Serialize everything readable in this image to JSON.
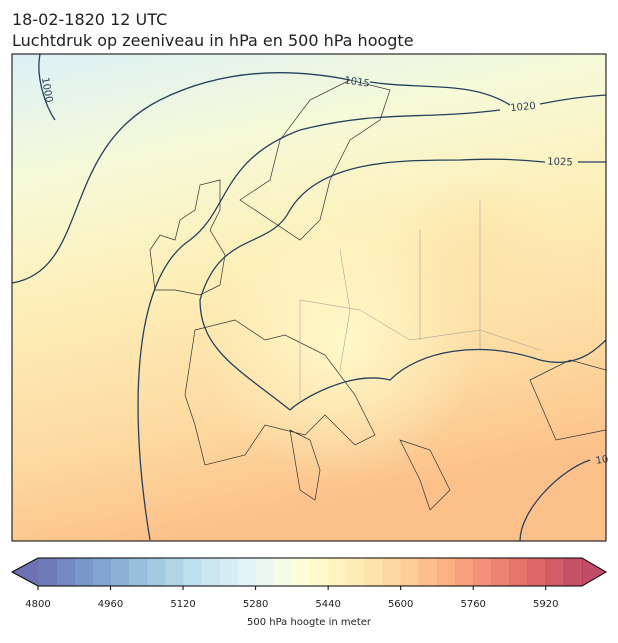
{
  "header": {
    "time": "18-02-1820 12 UTC",
    "title": "Luchtdruk op zeeniveau in hPa en 500 hPa hoogte"
  },
  "map": {
    "contour_labels": [
      "1000",
      "1015",
      "1020",
      "1025",
      "10"
    ]
  },
  "colorbar": {
    "label": "500 hPa hoogte in meter",
    "range": [
      4800,
      6000
    ],
    "step": 40,
    "ticks": [
      4800,
      4960,
      5120,
      5280,
      5440,
      5600,
      5760,
      5920
    ],
    "colormap": [
      "#313695",
      "#4575b4",
      "#74add1",
      "#abd9e9",
      "#e0f3f8",
      "#ffffbf",
      "#fee090",
      "#fdae61",
      "#f46d43",
      "#d73027",
      "#a50026"
    ],
    "alpha": 0.7
  }
}
